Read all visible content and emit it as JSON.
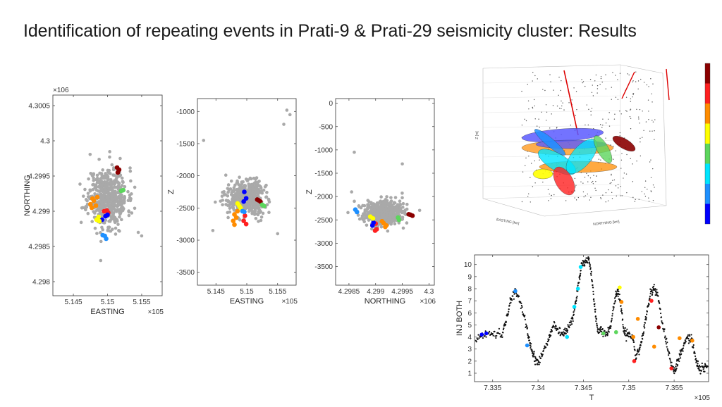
{
  "slide": {
    "title": "Identification of repeating events in Prati-9 & Prati-29 seismicity cluster: Results"
  },
  "colors": {
    "background_events": "#a9a9a9",
    "repeater_palette": [
      "#0000ff",
      "#1e90ff",
      "#00e5ff",
      "#5cd65c",
      "#ffff00",
      "#ff8c00",
      "#ff2020",
      "#8b0000"
    ]
  },
  "chart_data": [
    {
      "type": "scatter",
      "xlabel": "EASTING",
      "ylabel": "NORTHING",
      "x_exponent": "×10^5",
      "y_exponent": "×10^6",
      "xlim": [
        514200,
        515800
      ],
      "ylim": [
        4297800,
        4300650
      ],
      "x_ticks": [
        514500,
        515000,
        515500
      ],
      "x_tick_labels": [
        "5.145",
        "5.15",
        "5.155"
      ],
      "y_ticks": [
        4298000,
        4298500,
        4299000,
        4299500,
        4300000,
        4300500
      ],
      "y_tick_labels": [
        "4.298",
        "4.2985",
        "4.299",
        "4.2995",
        "4.3",
        "4.3005"
      ],
      "background_events": {
        "center": [
          515000,
          4299200
        ],
        "spread": [
          260,
          380
        ],
        "count": 520,
        "extra": [
          [
            515450,
            4298700
          ],
          [
            515500,
            4298650
          ],
          [
            514900,
            4298300
          ]
        ]
      },
      "series": [
        {
          "color": "#8b0000",
          "points": [
            [
              515150,
              4299550
            ],
            [
              515170,
              4299590
            ],
            [
              515140,
              4299620
            ]
          ]
        },
        {
          "color": "#5cd65c",
          "points": [
            [
              515200,
              4299290
            ],
            [
              515230,
              4299300
            ]
          ]
        },
        {
          "color": "#ff8c00",
          "points": [
            [
              514750,
              4299100
            ],
            [
              514800,
              4299150
            ],
            [
              514850,
              4299200
            ],
            [
              514770,
              4299050
            ],
            [
              514830,
              4299080
            ],
            [
              514780,
              4299180
            ]
          ]
        },
        {
          "color": "#ff2020",
          "points": [
            [
              514950,
              4299000
            ],
            [
              514990,
              4299010
            ],
            [
              515010,
              4298980
            ]
          ]
        },
        {
          "color": "#0000ff",
          "points": [
            [
              514970,
              4298930
            ],
            [
              515000,
              4298950
            ],
            [
              514920,
              4298880
            ]
          ]
        },
        {
          "color": "#ffff00",
          "points": [
            [
              514840,
              4298880
            ],
            [
              514870,
              4298920
            ],
            [
              514880,
              4298860
            ]
          ]
        },
        {
          "color": "#1e90ff",
          "points": [
            [
              514930,
              4298660
            ],
            [
              514960,
              4298650
            ],
            [
              514980,
              4298610
            ]
          ]
        }
      ]
    },
    {
      "type": "scatter",
      "xlabel": "EASTING",
      "ylabel": "Z",
      "x_exponent": "×10^5",
      "xlim": [
        514200,
        515800
      ],
      "ylim": [
        -3700,
        -800
      ],
      "x_ticks": [
        514500,
        515000,
        515500
      ],
      "x_tick_labels": [
        "5.145",
        "5.15",
        "5.155"
      ],
      "y_ticks": [
        -3500,
        -3000,
        -2500,
        -2000,
        -1500,
        -1000
      ],
      "y_tick_labels": [
        "-3500",
        "-3000",
        "-2500",
        "-2000",
        "-1500",
        "-1000"
      ],
      "background_events": {
        "center": [
          515000,
          -2350
        ],
        "spread": [
          260,
          230
        ],
        "count": 520,
        "extra": [
          [
            515650,
            -980
          ],
          [
            515700,
            -1050
          ],
          [
            515600,
            -1200
          ],
          [
            514300,
            -1450
          ],
          [
            514450,
            -2850
          ],
          [
            515500,
            -2900
          ]
        ]
      },
      "series": [
        {
          "color": "#8b0000",
          "points": [
            [
              515190,
              -2380
            ],
            [
              515220,
              -2400
            ],
            [
              515170,
              -2370
            ]
          ]
        },
        {
          "color": "#5cd65c",
          "points": [
            [
              515250,
              -2450
            ],
            [
              515280,
              -2470
            ]
          ]
        },
        {
          "color": "#ff8c00",
          "points": [
            [
              514800,
              -2600
            ],
            [
              514830,
              -2650
            ],
            [
              514780,
              -2700
            ],
            [
              514850,
              -2550
            ],
            [
              514800,
              -2760
            ]
          ]
        },
        {
          "color": "#ff2020",
          "points": [
            [
              514950,
              -2700
            ],
            [
              514990,
              -2750
            ],
            [
              514970,
              -2620
            ]
          ]
        },
        {
          "color": "#0000ff",
          "points": [
            [
              514960,
              -2250
            ],
            [
              514950,
              -2400
            ],
            [
              514990,
              -2350
            ]
          ]
        },
        {
          "color": "#ffff00",
          "points": [
            [
              514850,
              -2430
            ],
            [
              514880,
              -2470
            ],
            [
              514900,
              -2500
            ]
          ]
        },
        {
          "color": "#1e90ff",
          "points": [
            [
              514930,
              -2550
            ],
            [
              514960,
              -2560
            ]
          ]
        }
      ]
    },
    {
      "type": "scatter",
      "xlabel": "NORTHING",
      "ylabel": "Z",
      "x_exponent": "×10^6",
      "xlim": [
        4298250,
        4300100
      ],
      "ylim": [
        -3900,
        100
      ],
      "x_ticks": [
        4298500,
        4299000,
        4299500,
        4300000
      ],
      "x_tick_labels": [
        "4.2985",
        "4.299",
        "4.2995",
        "4.3"
      ],
      "y_ticks": [
        -3500,
        -3000,
        -2500,
        -2000,
        -1500,
        -1000,
        -500,
        0
      ],
      "y_tick_labels": [
        "-3500",
        "-3000",
        "-2500",
        "-2000",
        "-1500",
        "-1000",
        "-500",
        "0"
      ],
      "background_events": {
        "center": [
          4299150,
          -2350
        ],
        "spread": [
          340,
          230
        ],
        "count": 520,
        "extra": [
          [
            4298600,
            -1050
          ],
          [
            4298550,
            -1900
          ],
          [
            4299500,
            -1300
          ]
        ]
      },
      "series": [
        {
          "color": "#8b0000",
          "points": [
            [
              4299650,
              -2390
            ],
            [
              4299690,
              -2410
            ],
            [
              4299620,
              -2380
            ]
          ]
        },
        {
          "color": "#5cd65c",
          "points": [
            [
              4299420,
              -2450
            ],
            [
              4299440,
              -2500
            ]
          ]
        },
        {
          "color": "#ff8c00",
          "points": [
            [
              4299150,
              -2570
            ],
            [
              4299200,
              -2620
            ],
            [
              4299120,
              -2530
            ],
            [
              4299180,
              -2650
            ]
          ]
        },
        {
          "color": "#ff2020",
          "points": [
            [
              4298990,
              -2730
            ],
            [
              4299020,
              -2700
            ],
            [
              4299000,
              -2580
            ]
          ]
        },
        {
          "color": "#0000ff",
          "points": [
            [
              4298940,
              -2620
            ],
            [
              4298960,
              -2560
            ]
          ]
        },
        {
          "color": "#ffff00",
          "points": [
            [
              4298900,
              -2430
            ],
            [
              4298950,
              -2470
            ]
          ]
        },
        {
          "color": "#1e90ff",
          "points": [
            [
              4298620,
              -2280
            ],
            [
              4298650,
              -2330
            ]
          ]
        }
      ]
    },
    {
      "type": "scatter3d",
      "xlabel": "EASTING [km]",
      "ylabel": "NORTHING [km]",
      "zlabel": "Z [m]",
      "colorbar_colors": [
        "#8b0000",
        "#ff2020",
        "#ff8c00",
        "#ffff00",
        "#5cd65c",
        "#00e5ff",
        "#1e90ff",
        "#0000ff"
      ]
    },
    {
      "type": "scatter",
      "xlabel": "T",
      "ylabel": "INJ BOTH",
      "x_exponent": "×10^5",
      "xlim": [
        733300,
        735880
      ],
      "ylim": [
        0.3,
        10.8
      ],
      "x_ticks": [
        733500,
        734000,
        734500,
        735000,
        735500
      ],
      "x_tick_labels": [
        "7.335",
        "7.34",
        "7.345",
        "7.35",
        "7.355"
      ],
      "y_ticks": [
        1,
        2,
        3,
        4,
        5,
        6,
        7,
        8,
        9,
        10
      ],
      "y_tick_labels": [
        "1",
        "2",
        "3",
        "4",
        "5",
        "6",
        "7",
        "8",
        "9",
        "10"
      ],
      "curve": [
        [
          733300,
          3.8
        ],
        [
          733400,
          4.2
        ],
        [
          733500,
          4.3
        ],
        [
          733600,
          4.1
        ],
        [
          733650,
          5.5
        ],
        [
          733700,
          7.0
        ],
        [
          733760,
          7.8
        ],
        [
          733820,
          6.5
        ],
        [
          733880,
          4.5
        ],
        [
          733920,
          3.3
        ],
        [
          733960,
          2.2
        ],
        [
          734000,
          1.8
        ],
        [
          734060,
          2.8
        ],
        [
          734120,
          4.0
        ],
        [
          734160,
          4.8
        ],
        [
          734220,
          4.6
        ],
        [
          734280,
          4.3
        ],
        [
          734330,
          4.8
        ],
        [
          734380,
          5.5
        ],
        [
          734420,
          7.0
        ],
        [
          734450,
          8.5
        ],
        [
          734480,
          10.0
        ],
        [
          734520,
          10.2
        ],
        [
          734560,
          10.5
        ],
        [
          734600,
          8.5
        ],
        [
          734630,
          6.0
        ],
        [
          734660,
          4.5
        ],
        [
          734700,
          4.7
        ],
        [
          734760,
          4.2
        ],
        [
          734800,
          5.0
        ],
        [
          734850,
          7.0
        ],
        [
          734880,
          8.0
        ],
        [
          734910,
          6.8
        ],
        [
          734950,
          4.2
        ],
        [
          734990,
          4.3
        ],
        [
          735040,
          4.0
        ],
        [
          735080,
          2.4
        ],
        [
          735120,
          3.0
        ],
        [
          735160,
          4.5
        ],
        [
          735200,
          6.0
        ],
        [
          735240,
          7.6
        ],
        [
          735280,
          8.0
        ],
        [
          735320,
          7.5
        ],
        [
          735370,
          5.0
        ],
        [
          735420,
          3.5
        ],
        [
          735470,
          1.5
        ],
        [
          735510,
          1.2
        ],
        [
          735550,
          2.2
        ],
        [
          735590,
          3.0
        ],
        [
          735640,
          4.0
        ],
        [
          735690,
          3.8
        ],
        [
          735740,
          2.2
        ],
        [
          735780,
          1.2
        ],
        [
          735830,
          1.4
        ],
        [
          735880,
          1.6
        ]
      ],
      "series": [
        {
          "color": "#0000ff",
          "points": [
            [
              733380,
              4.2
            ],
            [
              733430,
              4.3
            ]
          ]
        },
        {
          "color": "#1e90ff",
          "points": [
            [
              733750,
              7.8
            ],
            [
              733880,
              3.3
            ]
          ]
        },
        {
          "color": "#00e5ff",
          "points": [
            [
              734320,
              4.0
            ],
            [
              734400,
              6.5
            ],
            [
              734440,
              8.0
            ],
            [
              734470,
              9.8
            ]
          ]
        },
        {
          "color": "#5cd65c",
          "points": [
            [
              734720,
              4.3
            ],
            [
              734860,
              4.4
            ]
          ]
        },
        {
          "color": "#ffff00",
          "points": [
            [
              734900,
              8.1
            ]
          ]
        },
        {
          "color": "#ff8c00",
          "points": [
            [
              734920,
              6.9
            ],
            [
              735050,
              4.0
            ],
            [
              735100,
              5.5
            ],
            [
              735280,
              3.2
            ],
            [
              735560,
              3.9
            ],
            [
              735700,
              3.7
            ]
          ]
        },
        {
          "color": "#ff2020",
          "points": [
            [
              735060,
              2.0
            ],
            [
              735250,
              7.0
            ],
            [
              735470,
              1.4
            ]
          ]
        },
        {
          "color": "#8b0000",
          "points": [
            [
              735330,
              4.8
            ]
          ]
        }
      ]
    }
  ]
}
